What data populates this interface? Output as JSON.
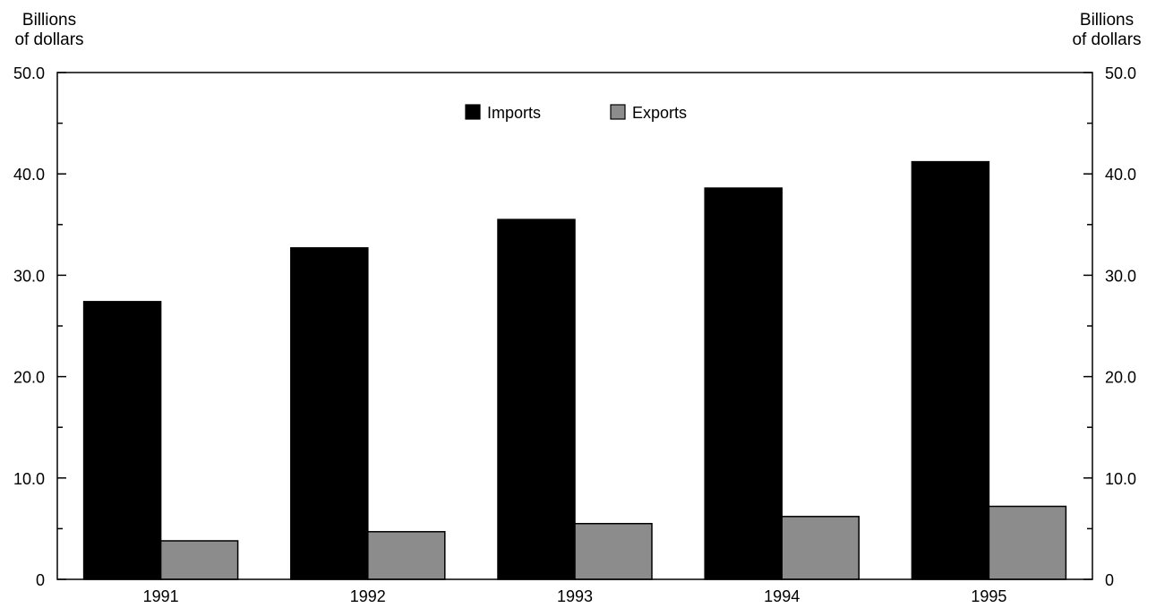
{
  "chart_data": {
    "type": "bar",
    "categories": [
      "1991",
      "1992",
      "1993",
      "1994",
      "1995"
    ],
    "series": [
      {
        "name": "Imports",
        "values": [
          27.4,
          32.7,
          35.5,
          38.6,
          41.2
        ],
        "color": "#000000"
      },
      {
        "name": "Exports",
        "values": [
          3.8,
          4.7,
          5.5,
          6.2,
          7.2
        ],
        "color": "#8c8c8c"
      }
    ],
    "ylabel_left": [
      "Billions",
      "of dollars"
    ],
    "ylabel_right": [
      "Billions",
      "of dollars"
    ],
    "ylim": [
      0,
      50
    ],
    "ytick_labels": [
      "0",
      "10.0",
      "20.0",
      "30.0",
      "40.0",
      "50.0"
    ],
    "ytick_values": [
      0,
      10,
      20,
      30,
      40,
      50
    ],
    "minor_tick_step": 5,
    "legend_position": "top-center",
    "grid": false
  }
}
